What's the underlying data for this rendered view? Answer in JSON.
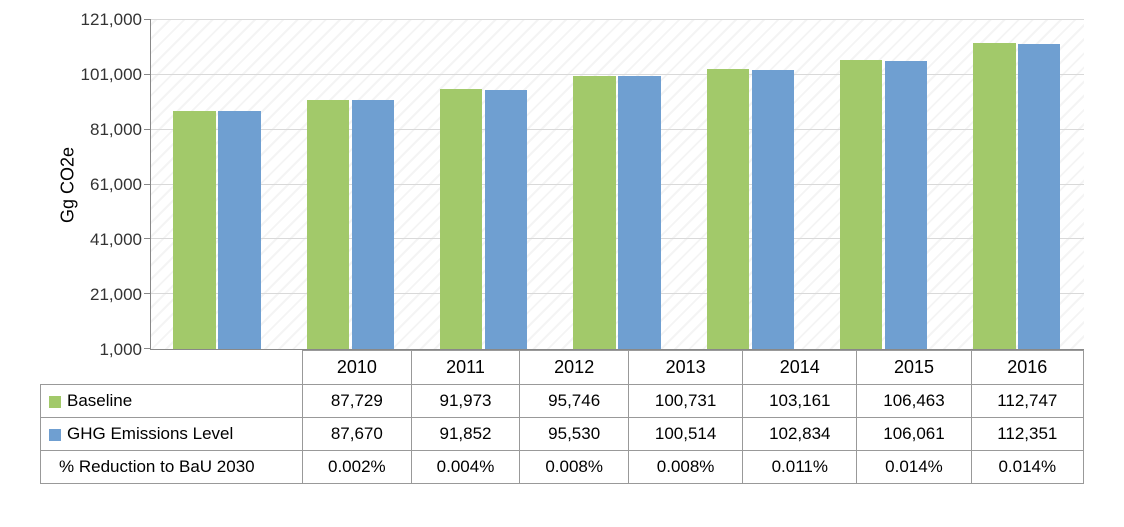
{
  "chart": {
    "type": "bar",
    "y_label": "Gg CO2e",
    "y_min": 1000,
    "y_max": 121000,
    "y_ticks": [
      1000,
      21000,
      41000,
      61000,
      81000,
      101000,
      121000
    ],
    "y_tick_labels": [
      "1,000",
      "21,000",
      "41,000",
      "61,000",
      "81,000",
      "101,000",
      "121,000"
    ],
    "categories": [
      "2010",
      "2011",
      "2012",
      "2013",
      "2014",
      "2015",
      "2016"
    ],
    "series": [
      {
        "name": "Baseline",
        "color": "#a2c96a",
        "values": [
          87729,
          91973,
          95746,
          100731,
          103161,
          106463,
          112747
        ],
        "value_labels": [
          "87,729",
          "91,973",
          "95,746",
          "100,731",
          "103,161",
          "106,463",
          "112,747"
        ]
      },
      {
        "name": "GHG Emissions Level",
        "color": "#6f9fd1",
        "values": [
          87670,
          91852,
          95530,
          100514,
          102834,
          106061,
          112351
        ],
        "value_labels": [
          "87,670",
          "91,852",
          "95,530",
          "100,514",
          "102,834",
          "106,061",
          "112,351"
        ]
      }
    ],
    "aux_row": {
      "label": "% Reduction to BaU 2030",
      "values": [
        "0.002%",
        "0.004%",
        "0.008%",
        "0.008%",
        "0.011%",
        "0.014%",
        "0.014%"
      ]
    },
    "plot_bg": "#ffffff",
    "hatch_color": "#f4f4f4",
    "grid_color": "#d9d9d9",
    "axis_color": "#888888",
    "text_color": "#000000",
    "tick_fontsize": 17,
    "label_fontsize": 18,
    "bar_width_ratio": 0.32
  }
}
